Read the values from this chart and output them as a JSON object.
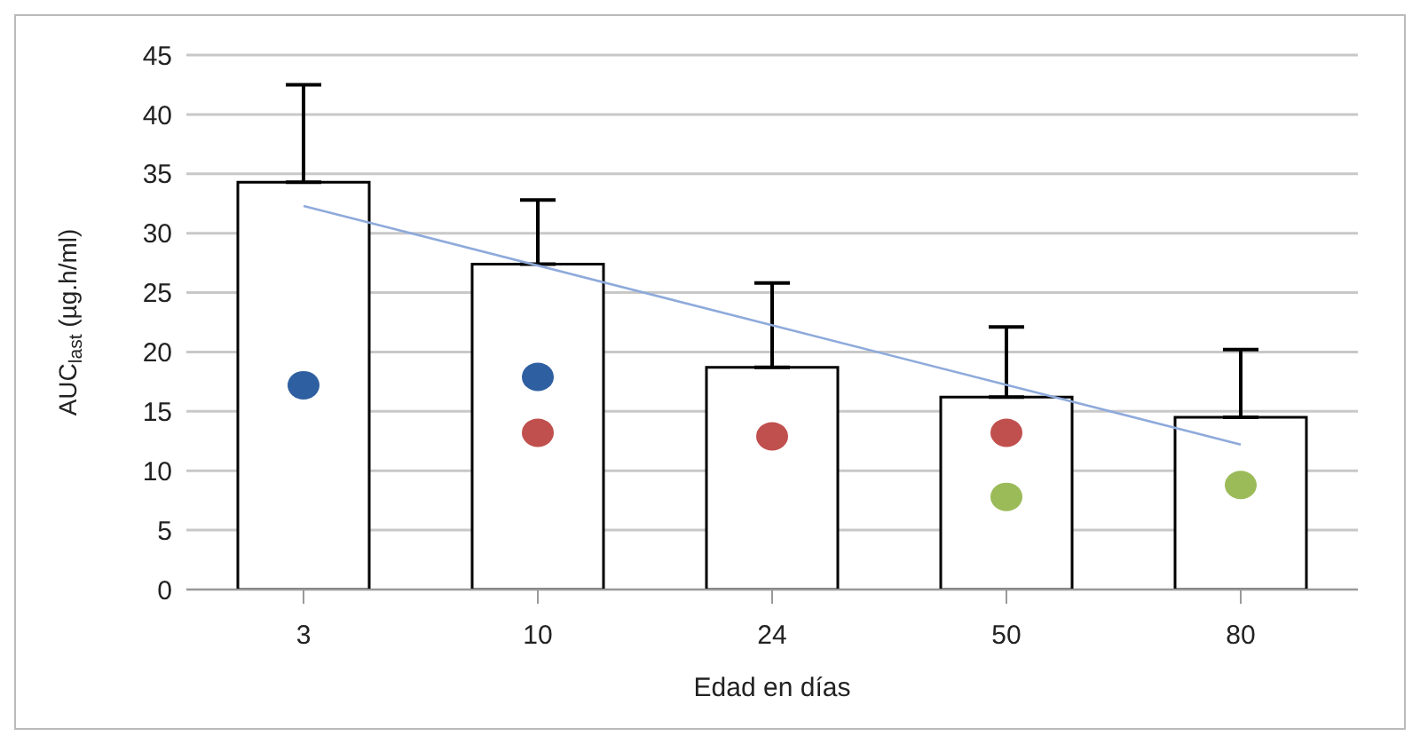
{
  "chart_data": {
    "type": "bar",
    "xlabel": "Edad en días",
    "ylabel": "AUC$_{last}$ (µg.h/ml)",
    "categories": [
      "3",
      "10",
      "24",
      "50",
      "80"
    ],
    "grid": "y",
    "legend": false,
    "ylim": [
      0,
      45
    ],
    "yticks": [
      0,
      5,
      10,
      15,
      20,
      25,
      30,
      35,
      40,
      45
    ],
    "series": [
      {
        "color": "#ffffff",
        "values": [
          34.3,
          27.4,
          18.7,
          16.2,
          14.5
        ],
        "errors": [
          [
            34.3,
            42.5
          ],
          [
            27.4,
            32.8
          ],
          [
            18.7,
            25.8
          ],
          [
            16.2,
            22.1
          ],
          [
            14.5,
            20.2
          ]
        ]
      },
      {
        "type": "line",
        "color": "#8eaadb",
        "x": [
          "3",
          "80"
        ],
        "values": [
          32.3,
          12.2
        ],
        "marker": "none"
      },
      {
        "type": "scatter",
        "color": "#2e5fa0",
        "x": [
          "3",
          "10"
        ],
        "values": [
          17.2,
          17.9
        ],
        "marker": "circle"
      },
      {
        "type": "scatter",
        "color": "#c0504d",
        "x": [
          "10",
          "24",
          "50"
        ],
        "values": [
          13.2,
          12.9,
          13.2
        ],
        "marker": "circle"
      },
      {
        "type": "scatter",
        "color": "#9bbb59",
        "x": [
          "50",
          "80"
        ],
        "values": [
          7.8,
          8.8
        ],
        "marker": "circle"
      }
    ]
  }
}
